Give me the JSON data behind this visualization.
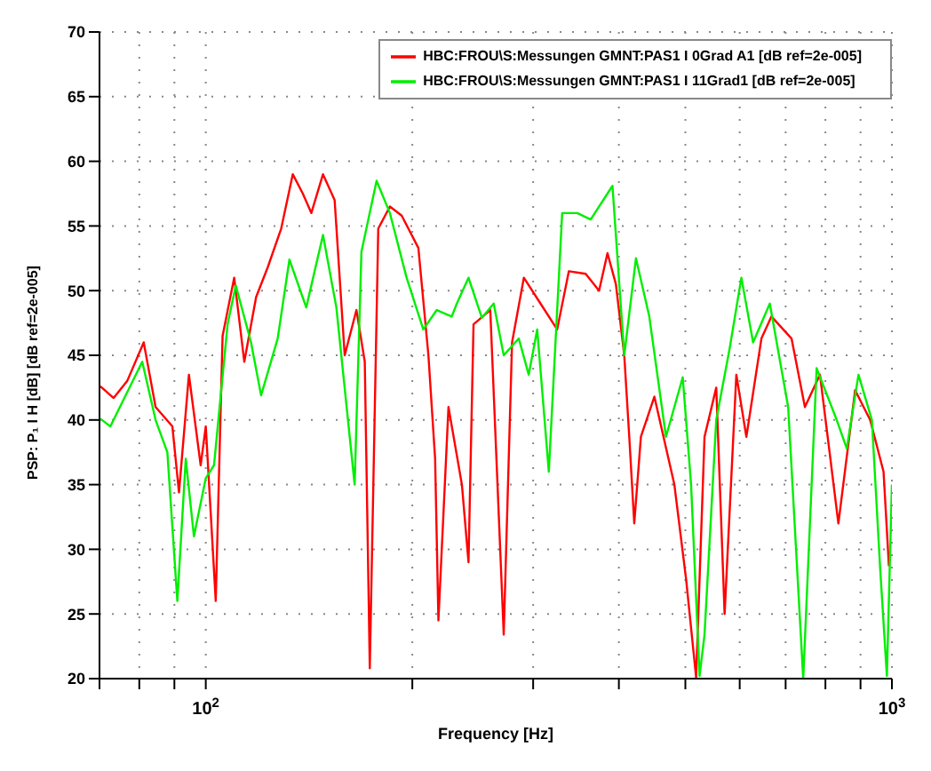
{
  "chart_data": {
    "type": "line",
    "xlabel": "Frequency [Hz]",
    "ylabel": "PSP: P₁ I H [dB] [dB ref=2e-005]",
    "log": "x",
    "grid": true,
    "legend": "top right",
    "line_style": "solid",
    "marker": "none",
    "xlim": [
      70,
      1000
    ],
    "ylim": [
      20,
      70
    ],
    "xticks": [
      {
        "value": 70,
        "label": null
      },
      {
        "value": 80,
        "label": null
      },
      {
        "value": 90,
        "label": null
      },
      {
        "value": 100,
        "label": "10$^{2}$"
      },
      {
        "value": 200,
        "label": null
      },
      {
        "value": 300,
        "label": null
      },
      {
        "value": 400,
        "label": null
      },
      {
        "value": 500,
        "label": null
      },
      {
        "value": 600,
        "label": null
      },
      {
        "value": 700,
        "label": null
      },
      {
        "value": 800,
        "label": null
      },
      {
        "value": 900,
        "label": null
      },
      {
        "value": 1000,
        "label": "10$^{3}$"
      }
    ],
    "yticks": [
      20,
      25,
      30,
      35,
      40,
      45,
      50,
      55,
      60,
      65,
      70
    ],
    "series": [
      {
        "name": "HBC:FROU\\S:Messungen GMNT:PAS1 I 0Grad A1 [dB ref=2e-005]",
        "color": "#ff0000",
        "x": [
          70.2,
          73.4,
          76.8,
          81.2,
          84.5,
          89.4,
          91.4,
          94.5,
          98.3,
          100,
          103.4,
          105.8,
          110,
          113.8,
          118.4,
          123.1,
          128.8,
          133.9,
          138.5,
          142.5,
          148.2,
          154.1,
          159.4,
          165.8,
          170.5,
          173.4,
          178.4,
          185.5,
          193,
          204.1,
          211.1,
          215.9,
          218.3,
          225.8,
          236.2,
          241.5,
          245.6,
          259.8,
          271.8,
          279.5,
          290.8,
          307.5,
          325.2,
          338.2,
          357.8,
          374.3,
          385,
          396,
          407.3,
          414.2,
          421.2,
          430.7,
          450.6,
          481.9,
          501.2,
          518.4,
          533.2,
          554.6,
          570.4,
          593.3,
          613.6,
          645.4,
          667.5,
          714,
          746.8,
          785.5,
          835.6,
          883.8,
          929.6,
          972.3,
          990
        ],
        "values": [
          42.6,
          41.7,
          43,
          46,
          41,
          39.5,
          34.4,
          43.5,
          36.5,
          39.5,
          26,
          46.5,
          51,
          44.5,
          49.5,
          51.8,
          54.8,
          59,
          57.5,
          56,
          59,
          57,
          45,
          48.5,
          44.5,
          20.8,
          54.8,
          56.5,
          55.8,
          53.3,
          45,
          37,
          24.5,
          41,
          35,
          29,
          47.4,
          48.5,
          23.4,
          46,
          51,
          49,
          47,
          51.5,
          51.3,
          50,
          52.9,
          50.5,
          45,
          38.7,
          32,
          38.7,
          41.8,
          35,
          27.7,
          20.1,
          38.7,
          42.5,
          25,
          43.5,
          38.7,
          46.3,
          48,
          46.3,
          41,
          43.5,
          32,
          42.3,
          40,
          36,
          28.7
        ]
      },
      {
        "name": "HBC:FROU\\S:Messungen GMNT:PAS1 I 11Grad1 [dB ref=2e-005]",
        "color": "#00ee00",
        "x": [
          70.2,
          72.6,
          80.8,
          84.5,
          87.9,
          90.9,
          93.5,
          96.1,
          100,
          102.8,
          107.6,
          110.6,
          116.4,
          120.4,
          127.3,
          132.4,
          140.1,
          148.2,
          155,
          164.8,
          168.6,
          177.4,
          185.5,
          196.2,
          207.5,
          217.1,
          228.3,
          232.2,
          241.5,
          252.6,
          262.8,
          271.8,
          285.9,
          295.6,
          304.1,
          316.2,
          330.7,
          347.9,
          363.9,
          391.5,
          407.3,
          423.6,
          443,
          468.5,
          495.6,
          509.7,
          524.4,
          533.2,
          554.6,
          580,
          603.4,
          627.6,
          663.8,
          706,
          742.6,
          776.8,
          830.9,
          859.4,
          893.9,
          935,
          961.4,
          983.3,
          1000
        ],
        "values": [
          40.1,
          39.5,
          44.5,
          40,
          37.5,
          26,
          37,
          31,
          35.5,
          36.5,
          47.4,
          50.4,
          46,
          41.9,
          46.3,
          52.4,
          48.7,
          54.3,
          48.7,
          35,
          53,
          58.5,
          56,
          51,
          47,
          48.5,
          48,
          49,
          51,
          47.9,
          49,
          45,
          46.3,
          43.5,
          47,
          36,
          56,
          56,
          55.5,
          58.1,
          45,
          52.5,
          48,
          38.7,
          43.3,
          35,
          20.2,
          23.4,
          40,
          45.5,
          51,
          46,
          49,
          41,
          20,
          44,
          40,
          37.8,
          43.5,
          40,
          28.5,
          20.2,
          35
        ]
      }
    ]
  }
}
